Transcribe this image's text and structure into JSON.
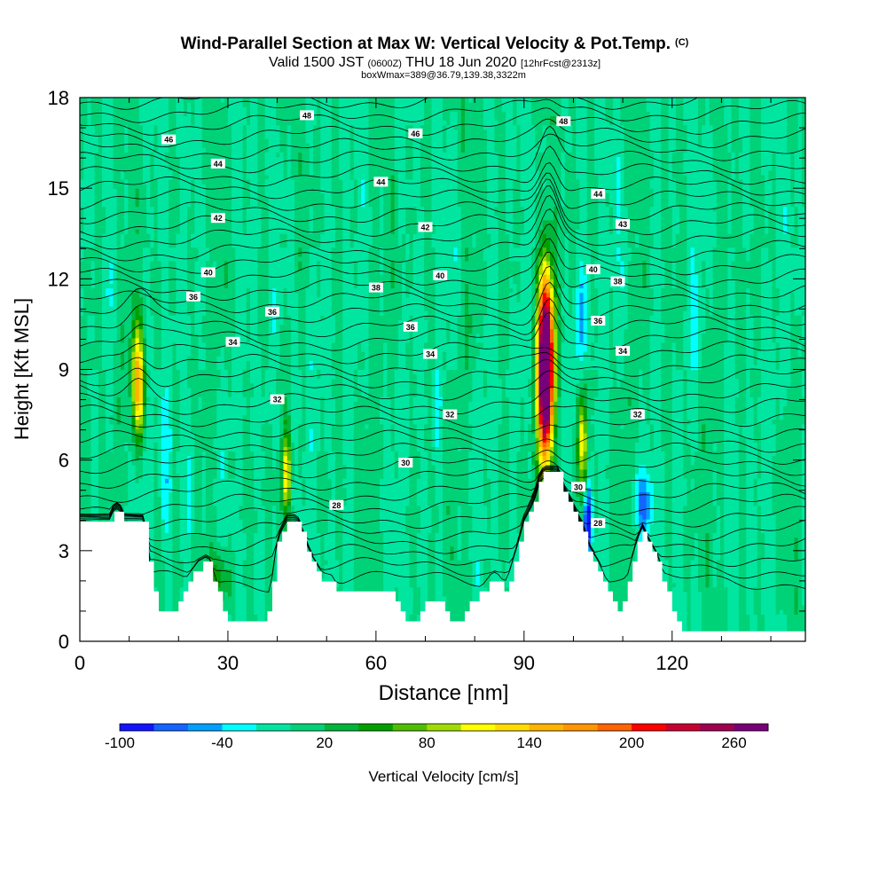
{
  "chart_data": {
    "type": "heatmap",
    "title": "Wind-Parallel Section at Max W: Vertical Velocity & Pot.Temp.",
    "title_mark": "(C)",
    "subtitle_prefix": "Valid 1500 JST",
    "subtitle_utc": "(0600Z)",
    "subtitle_main": "THU 18 Jun 2020",
    "subtitle_run": "[12hrFcst@2313z]",
    "subtitle_box": "boxWmax=389@36.79,139.38,3322m",
    "xlabel": "Distance [nm]",
    "ylabel": "Height [Kft MSL]",
    "xlim": [
      0,
      147
    ],
    "ylim": [
      0,
      18
    ],
    "xticks": [
      0,
      30,
      60,
      90,
      120
    ],
    "yticks": [
      0,
      3,
      6,
      9,
      12,
      15,
      18
    ],
    "colorbar_label": "Vertical Velocity [cm/s]",
    "colorbar_ticks": [
      -100,
      -40,
      20,
      80,
      140,
      200,
      260
    ],
    "colorbar_levels": [
      -100,
      -80,
      -60,
      -40,
      -20,
      0,
      20,
      40,
      60,
      80,
      100,
      120,
      140,
      160,
      180,
      200,
      220,
      240,
      260,
      280
    ],
    "colorbar_colors": [
      "#1414ff",
      "#1464ff",
      "#00a0ff",
      "#00ffff",
      "#00e6a0",
      "#00d278",
      "#00b43c",
      "#00a000",
      "#50be00",
      "#a0dc00",
      "#ffff00",
      "#ffdc00",
      "#ffb400",
      "#ff9600",
      "#ff6400",
      "#ff0000",
      "#c80032",
      "#a00050",
      "#780078"
    ],
    "background_w_cms": 0,
    "terrain_kft": [
      [
        0,
        3.9
      ],
      [
        6,
        3.9
      ],
      [
        7,
        4.3
      ],
      [
        8,
        4.3
      ],
      [
        9,
        3.9
      ],
      [
        13,
        3.9
      ],
      [
        14,
        2.5
      ],
      [
        15,
        1.5
      ],
      [
        16,
        1.0
      ],
      [
        19,
        1.0
      ],
      [
        20,
        1.3
      ],
      [
        21,
        1.6
      ],
      [
        22,
        1.9
      ],
      [
        24,
        2.4
      ],
      [
        26,
        2.6
      ],
      [
        27,
        2.1
      ],
      [
        28,
        1.5
      ],
      [
        29,
        1.0
      ],
      [
        30,
        0.7
      ],
      [
        37,
        0.7
      ],
      [
        38,
        1.0
      ],
      [
        39,
        1.9
      ],
      [
        40,
        3.2
      ],
      [
        41,
        3.6
      ],
      [
        42,
        3.9
      ],
      [
        44,
        3.9
      ],
      [
        45,
        3.5
      ],
      [
        46,
        3.0
      ],
      [
        47,
        2.6
      ],
      [
        48,
        2.3
      ],
      [
        49,
        2.0
      ],
      [
        51,
        1.9
      ],
      [
        52,
        1.6
      ],
      [
        63,
        1.6
      ],
      [
        64,
        1.3
      ],
      [
        65,
        1.0
      ],
      [
        66,
        0.7
      ],
      [
        68,
        0.7
      ],
      [
        69,
        1.0
      ],
      [
        70,
        1.3
      ],
      [
        73,
        1.3
      ],
      [
        74,
        1.0
      ],
      [
        75,
        0.7
      ],
      [
        77,
        0.7
      ],
      [
        78,
        1.0
      ],
      [
        79,
        1.3
      ],
      [
        82,
        1.6
      ],
      [
        83,
        1.9
      ],
      [
        84,
        2.0
      ],
      [
        85,
        1.9
      ],
      [
        86,
        1.6
      ],
      [
        87,
        2.0
      ],
      [
        88,
        2.6
      ],
      [
        89,
        3.2
      ],
      [
        90,
        3.9
      ],
      [
        92,
        4.6
      ],
      [
        93,
        5.2
      ],
      [
        94,
        5.5
      ],
      [
        97,
        5.5
      ],
      [
        98,
        4.9
      ],
      [
        99,
        4.6
      ],
      [
        100,
        4.3
      ],
      [
        101,
        3.9
      ],
      [
        102,
        3.6
      ],
      [
        103,
        3.0
      ],
      [
        104,
        2.7
      ],
      [
        105,
        2.4
      ],
      [
        106,
        2.0
      ],
      [
        107,
        1.6
      ],
      [
        108,
        1.3
      ],
      [
        109,
        1.0
      ],
      [
        110,
        1.3
      ],
      [
        111,
        1.9
      ],
      [
        112,
        2.6
      ],
      [
        113,
        3.2
      ],
      [
        114,
        3.6
      ],
      [
        115,
        3.2
      ],
      [
        116,
        2.9
      ],
      [
        117,
        2.6
      ],
      [
        118,
        2.0
      ],
      [
        119,
        1.6
      ],
      [
        120,
        1.0
      ],
      [
        121,
        0.7
      ],
      [
        122,
        0.3
      ],
      [
        147,
        0.3
      ]
    ],
    "updrafts": [
      {
        "x": 11.5,
        "z": 8.5,
        "peak_w": 160,
        "half_width_nm": 1.3,
        "half_depth_kft": 1.9
      },
      {
        "x": 41.5,
        "z": 5.5,
        "peak_w": 110,
        "half_width_nm": 0.8,
        "half_depth_kft": 1.3
      },
      {
        "x": 94.0,
        "z": 9.0,
        "peak_w": 389,
        "half_width_nm": 1.6,
        "half_depth_kft": 3.0
      },
      {
        "x": 101.5,
        "z": 6.5,
        "peak_w": 120,
        "half_width_nm": 0.9,
        "half_depth_kft": 1.9
      },
      {
        "x": 28.0,
        "z": 2.0,
        "peak_w": 55,
        "half_width_nm": 2.5,
        "half_depth_kft": 1.0
      }
    ],
    "downdrafts": [
      {
        "x": 17.0,
        "z": 6.0,
        "peak_w": -40,
        "half_width_nm": 1.2,
        "half_depth_kft": 2.6
      },
      {
        "x": 22.0,
        "z": 5.0,
        "peak_w": -35,
        "half_width_nm": 1.0,
        "half_depth_kft": 2.0
      },
      {
        "x": 43.5,
        "z": 9.0,
        "peak_w": -30,
        "half_width_nm": 0.9,
        "half_depth_kft": 2.5
      },
      {
        "x": 102.5,
        "z": 4.0,
        "peak_w": -95,
        "half_width_nm": 0.9,
        "half_depth_kft": 1.2
      },
      {
        "x": 101.0,
        "z": 10.5,
        "peak_w": -50,
        "half_width_nm": 1.2,
        "half_depth_kft": 2.0
      },
      {
        "x": 114.0,
        "z": 4.5,
        "peak_w": -60,
        "half_width_nm": 1.8,
        "half_depth_kft": 1.0
      },
      {
        "x": 72.0,
        "z": 7.5,
        "peak_w": -30,
        "half_width_nm": 0.7,
        "half_depth_kft": 1.5
      }
    ],
    "theta_contours": [
      {
        "value": "28",
        "label_x": 52,
        "label_z": 4.5
      },
      {
        "value": "30",
        "label_x": 66,
        "label_z": 5.9
      },
      {
        "value": "30",
        "label_x": 101,
        "label_z": 5.1
      },
      {
        "value": "28",
        "label_x": 105,
        "label_z": 3.9
      },
      {
        "value": "32",
        "label_x": 40,
        "label_z": 8.0
      },
      {
        "value": "32",
        "label_x": 75,
        "label_z": 7.5
      },
      {
        "value": "32",
        "label_x": 113,
        "label_z": 7.5
      },
      {
        "value": "34",
        "label_x": 31,
        "label_z": 9.9
      },
      {
        "value": "34",
        "label_x": 71,
        "label_z": 9.5
      },
      {
        "value": "34",
        "label_x": 110,
        "label_z": 9.6
      },
      {
        "value": "36",
        "label_x": 23,
        "label_z": 11.4
      },
      {
        "value": "36",
        "label_x": 39,
        "label_z": 10.9
      },
      {
        "value": "36",
        "label_x": 67,
        "label_z": 10.4
      },
      {
        "value": "36",
        "label_x": 105,
        "label_z": 10.6
      },
      {
        "value": "38",
        "label_x": 60,
        "label_z": 11.7
      },
      {
        "value": "38",
        "label_x": 109,
        "label_z": 11.9
      },
      {
        "value": "40",
        "label_x": 26,
        "label_z": 12.2
      },
      {
        "value": "40",
        "label_x": 73,
        "label_z": 12.1
      },
      {
        "value": "40",
        "label_x": 104,
        "label_z": 12.3
      },
      {
        "value": "42",
        "label_x": 28,
        "label_z": 14.0
      },
      {
        "value": "42",
        "label_x": 70,
        "label_z": 13.7
      },
      {
        "value": "43",
        "label_x": 110,
        "label_z": 13.8
      },
      {
        "value": "44",
        "label_x": 28,
        "label_z": 15.8
      },
      {
        "value": "44",
        "label_x": 61,
        "label_z": 15.2
      },
      {
        "value": "44",
        "label_x": 105,
        "label_z": 14.8
      },
      {
        "value": "46",
        "label_x": 18,
        "label_z": 16.6
      },
      {
        "value": "46",
        "label_x": 68,
        "label_z": 16.8
      },
      {
        "value": "48",
        "label_x": 46,
        "label_z": 17.4
      },
      {
        "value": "48",
        "label_x": 98,
        "label_z": 17.2
      }
    ]
  }
}
